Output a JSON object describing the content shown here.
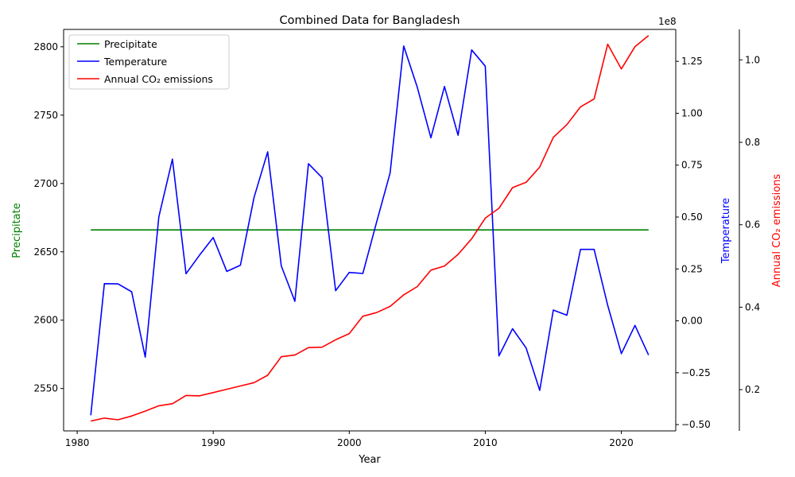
{
  "chart_data": {
    "type": "line",
    "title": "Combined Data for Bangladesh",
    "xlabel": "Year",
    "xlim": [
      1979.0,
      2024.0
    ],
    "xticks": [
      1980,
      1990,
      2000,
      2010,
      2020
    ],
    "x": [
      1981,
      1982,
      1983,
      1984,
      1985,
      1986,
      1987,
      1988,
      1989,
      1990,
      1991,
      1992,
      1993,
      1994,
      1995,
      1996,
      1997,
      1998,
      1999,
      2000,
      2001,
      2002,
      2003,
      2004,
      2005,
      2006,
      2007,
      2008,
      2009,
      2010,
      2011,
      2012,
      2013,
      2014,
      2015,
      2016,
      2017,
      2018,
      2019,
      2020,
      2021,
      2022
    ],
    "axes": {
      "precip": {
        "label": "Precipitate",
        "color": "#008000",
        "lim": [
          2519,
          2812.7
        ],
        "ticks": [
          2550,
          2600,
          2650,
          2700,
          2750,
          2800
        ],
        "tick_labels": [
          "2550",
          "2600",
          "2650",
          "2700",
          "2750",
          "2800"
        ]
      },
      "temp": {
        "label": "Temperature",
        "color": "#0000ff",
        "offset_text": "1e8",
        "lim": [
          -0.5303,
          1.4039
        ],
        "ticks": [
          -0.5,
          -0.25,
          0.0,
          0.25,
          0.5,
          0.75,
          1.0,
          1.25
        ],
        "tick_labels": [
          "−0.50",
          "−0.25",
          "0.00",
          "0.25",
          "0.50",
          "0.75",
          "1.00",
          "1.25"
        ]
      },
      "co2": {
        "label": "Annual CO₂ emissions",
        "color": "#ff0000",
        "lim": [
          0.1,
          1.0738
        ],
        "ticks": [
          0.2,
          0.4,
          0.6,
          0.8,
          1.0
        ],
        "tick_labels": [
          "0.2",
          "0.4",
          "0.6",
          "0.8",
          "1.0"
        ]
      }
    },
    "series": [
      {
        "name": "Precipitate",
        "axis": "precip",
        "color": "#008000",
        "values": [
          2666,
          2666,
          2666,
          2666,
          2666,
          2666,
          2666,
          2666,
          2666,
          2666,
          2666,
          2666,
          2666,
          2666,
          2666,
          2666,
          2666,
          2666,
          2666,
          2666,
          2666,
          2666,
          2666,
          2666,
          2666,
          2666,
          2666,
          2666,
          2666,
          2666,
          2666,
          2666,
          2666,
          2666,
          2666,
          2666,
          2666,
          2666,
          2666,
          2666,
          2666,
          2666
        ]
      },
      {
        "name": "Temperature",
        "axis": "temp",
        "color": "#0000ff",
        "values": [
          -0.455,
          0.179,
          0.178,
          0.14,
          -0.175,
          0.501,
          0.779,
          0.227,
          0.317,
          0.401,
          0.238,
          0.268,
          0.595,
          0.814,
          0.265,
          0.094,
          0.757,
          0.69,
          0.145,
          0.233,
          0.228,
          0.474,
          0.712,
          1.324,
          1.125,
          0.882,
          1.129,
          0.894,
          1.305,
          1.227,
          -0.169,
          -0.038,
          -0.131,
          -0.335,
          0.052,
          0.027,
          0.344,
          0.344,
          0.075,
          -0.158,
          -0.022,
          -0.165
        ]
      },
      {
        "name": "Annual CO₂ emissions",
        "axis": "co2",
        "color": "#ff0000",
        "values": [
          0.124,
          0.131,
          0.127,
          0.136,
          0.148,
          0.161,
          0.166,
          0.186,
          0.185,
          0.193,
          0.201,
          0.209,
          0.217,
          0.235,
          0.28,
          0.284,
          0.302,
          0.303,
          0.321,
          0.336,
          0.378,
          0.387,
          0.402,
          0.43,
          0.45,
          0.49,
          0.5,
          0.528,
          0.566,
          0.616,
          0.64,
          0.69,
          0.703,
          0.74,
          0.812,
          0.843,
          0.886,
          0.905,
          1.038,
          0.978,
          1.032,
          1.059
        ]
      }
    ],
    "legend": {
      "location": "upper-left",
      "entries": [
        {
          "label": "Precipitate",
          "color": "#008000"
        },
        {
          "label": "Temperature",
          "color": "#0000ff"
        },
        {
          "label": "Annual CO₂ emissions",
          "color": "#ff0000"
        }
      ]
    },
    "grid": false
  }
}
